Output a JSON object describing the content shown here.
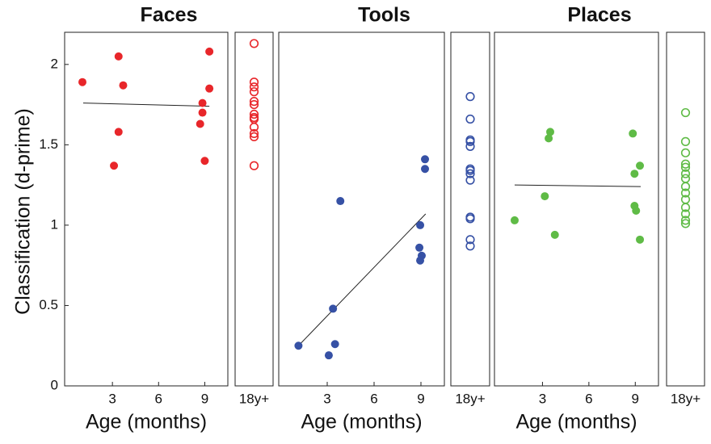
{
  "chart_data": [
    {
      "type": "scatter",
      "title": "Faces",
      "xlabel": "Age (months)",
      "ylabel": "Classification (d-prime)",
      "color": "#e8262a",
      "xlim": [
        0,
        10.5
      ],
      "xticks": [
        3,
        6,
        9
      ],
      "ylim": [
        0,
        2.2
      ],
      "yticks": [
        0,
        0.5,
        1,
        1.5,
        2
      ],
      "infant": {
        "x": [
          1.05,
          3.4,
          3.7,
          3.4,
          3.1,
          9.3,
          9.3,
          8.85,
          8.85,
          8.7,
          9.0
        ],
        "values": [
          1.89,
          2.05,
          1.87,
          1.58,
          1.37,
          2.08,
          1.85,
          1.76,
          1.7,
          1.63,
          1.4
        ]
      },
      "fit": {
        "x": [
          1.1,
          9.3
        ],
        "values": [
          1.76,
          1.74
        ]
      },
      "adult": {
        "category": "18y+",
        "values": [
          2.13,
          1.89,
          1.86,
          1.83,
          1.77,
          1.75,
          1.69,
          1.67,
          1.66,
          1.61,
          1.57,
          1.55,
          1.37
        ]
      }
    },
    {
      "type": "scatter",
      "title": "Tools",
      "xlabel": "Age (months)",
      "color": "#3651a5",
      "xlim": [
        0,
        10.5
      ],
      "xticks": [
        3,
        6,
        9
      ],
      "ylim": [
        0,
        2.2
      ],
      "infant": {
        "x": [
          1.16,
          3.37,
          3.5,
          3.1,
          3.84,
          9.26,
          9.26,
          8.95,
          8.9,
          9.05,
          8.95
        ],
        "values": [
          0.25,
          0.48,
          0.26,
          0.19,
          1.15,
          1.41,
          1.35,
          1.0,
          0.86,
          0.81,
          0.78
        ]
      },
      "fit": {
        "x": [
          1.16,
          9.3
        ],
        "values": [
          0.25,
          1.07
        ]
      },
      "adult": {
        "category": "18y+",
        "values": [
          1.8,
          1.66,
          1.53,
          1.52,
          1.49,
          1.35,
          1.34,
          1.32,
          1.28,
          1.05,
          1.04,
          0.91,
          0.87
        ]
      }
    },
    {
      "type": "scatter",
      "title": "Places",
      "xlabel": "Age (months)",
      "color": "#5fbb46",
      "xlim": [
        0,
        10.5
      ],
      "xticks": [
        3,
        6,
        9
      ],
      "ylim": [
        0,
        2.2
      ],
      "infant": {
        "x": [
          1.2,
          3.5,
          3.4,
          3.15,
          3.8,
          8.84,
          9.3,
          8.95,
          8.95,
          9.05,
          9.3
        ],
        "values": [
          1.03,
          1.58,
          1.54,
          1.18,
          0.94,
          1.57,
          1.37,
          1.32,
          1.12,
          1.09,
          0.91
        ]
      },
      "fit": {
        "x": [
          1.2,
          9.35
        ],
        "values": [
          1.25,
          1.24
        ]
      },
      "adult": {
        "category": "18y+",
        "values": [
          1.7,
          1.52,
          1.45,
          1.38,
          1.36,
          1.32,
          1.29,
          1.24,
          1.2,
          1.16,
          1.11,
          1.07,
          1.03,
          1.01
        ]
      }
    }
  ]
}
